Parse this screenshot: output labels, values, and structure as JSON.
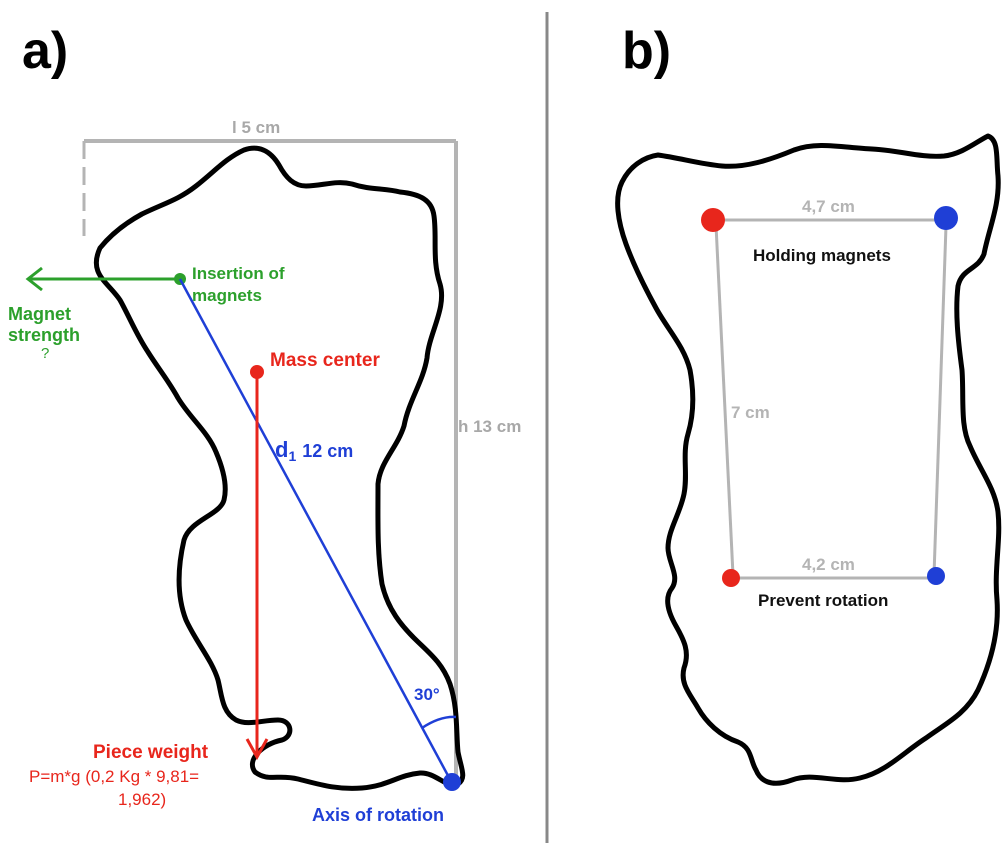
{
  "panel_a": {
    "label": "a)",
    "width_dim": "l 5 cm",
    "height_dim": "h 13 cm",
    "insertion_label": [
      "Insertion of",
      "magnets"
    ],
    "magnet_strength_label": [
      "Magnet",
      "strength"
    ],
    "magnet_strength_value": "?",
    "mass_center_label": "Mass center",
    "distance_prefix": "d",
    "distance_subscript": "1",
    "distance_value": "12 cm",
    "angle_label": "30°",
    "piece_weight_label": "Piece weight",
    "formula_lines": [
      "P=m*g (0,2 Kg * 9,81=",
      "1,962)"
    ],
    "axis_label": "Axis of rotation"
  },
  "panel_b": {
    "label": "b)",
    "top_distance": "4,7 cm",
    "holding_label": "Holding magnets",
    "side_distance": "7 cm",
    "bottom_distance": "4,2 cm",
    "prevent_label": "Prevent rotation"
  },
  "colors": {
    "green": "#2ca02c",
    "red": "#e8261c",
    "blue": "#1f3fd6",
    "gray": "#b4b4b4",
    "divider": "#888888",
    "outline": "#000000"
  }
}
